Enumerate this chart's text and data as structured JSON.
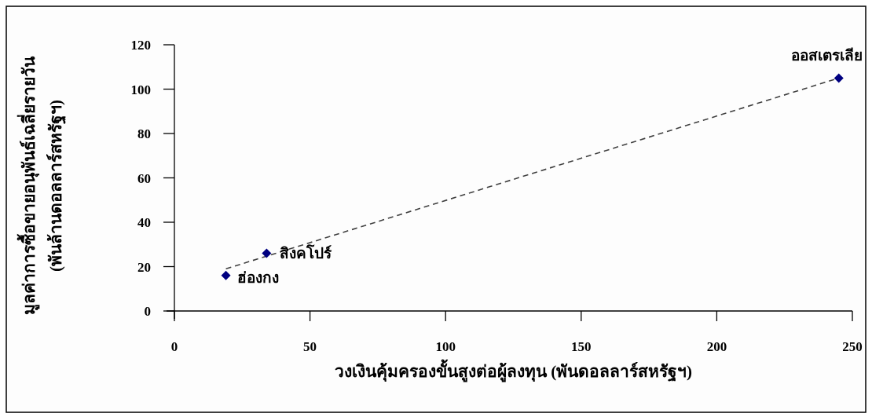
{
  "chart_data": {
    "type": "scatter",
    "xlabel": "วงเงินคุ้มครองขั้นสูงต่อผู้ลงทุน (พันดอลลาร์สหรัฐฯ)",
    "ylabel": "มูลค่าการซื้อขายอนุพันธ์เฉลี่ยรายวัน (พันล้านดอลลาร์สหรัฐฯ)",
    "xlim": [
      0,
      250
    ],
    "xticks": [
      0,
      50,
      100,
      150,
      200,
      250
    ],
    "ylim": [
      0,
      120
    ],
    "yticks": [
      0,
      20,
      40,
      60,
      80,
      100,
      120
    ],
    "series": [
      {
        "type": "line",
        "color": "#404040",
        "line_style": "dashed",
        "x": [
          19,
          245
        ],
        "values": [
          19,
          105
        ]
      },
      {
        "type": "scatter",
        "marker": "diamond",
        "color": "#000080",
        "x": [
          19,
          34,
          245
        ],
        "values": [
          16,
          26,
          105
        ]
      }
    ],
    "annotations": [
      {
        "text": "ฮ่องกง",
        "x": 19,
        "y": 16
      },
      {
        "text": "สิงคโปร์",
        "x": 34,
        "y": 26
      },
      {
        "text": "ออสเตรเลีย",
        "x": 245,
        "y": 105
      }
    ]
  }
}
